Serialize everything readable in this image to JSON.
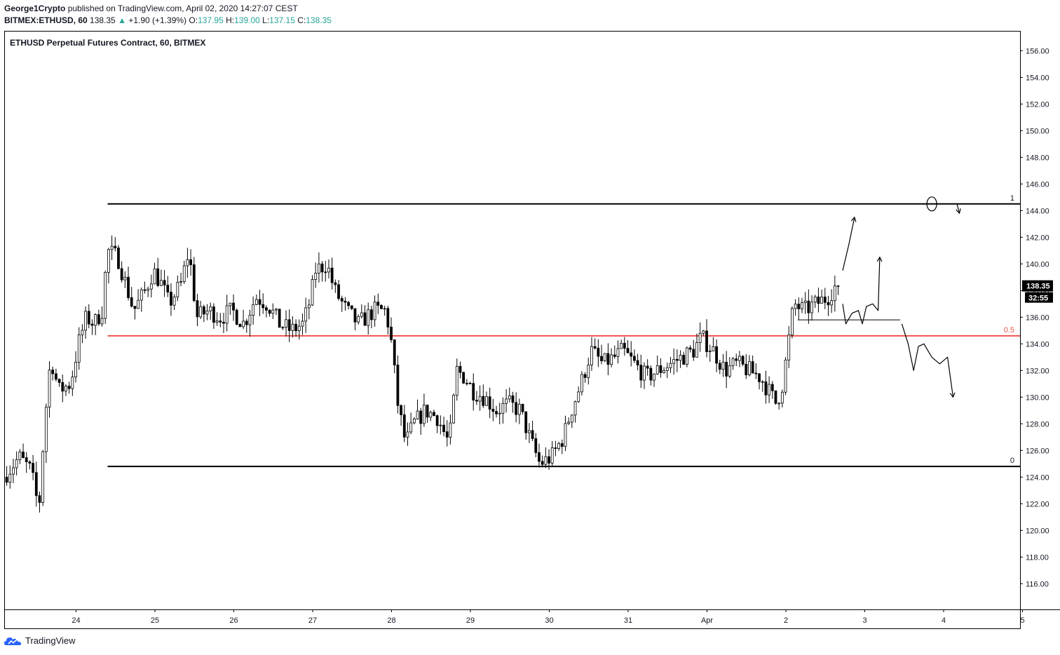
{
  "header": {
    "author": "George1Crypto",
    "published_text": "published on TradingView.com, April 02, 2020 14:27:07 CEST",
    "symbol_interval": "BITMEX:ETHUSD, 60",
    "last": "138.35",
    "arrow": "▲",
    "change": "+1.90 (+1.39%)",
    "o_label": "O:",
    "o_value": "137.95",
    "h_label": "H:",
    "h_value": "139.00",
    "l_label": "L:",
    "l_value": "137.15",
    "c_label": "C:",
    "c_value": "138.35"
  },
  "footer": {
    "brand": "TradingView"
  },
  "colors": {
    "up": "#26a69a",
    "candle": "#000000",
    "mid_line": "#ef5350",
    "label_bg": "#000000"
  },
  "chart_data": {
    "type": "candlestick",
    "title": "ETHUSD Perpetual Futures Contract, 60, BITMEX",
    "ylim": [
      114,
      157
    ],
    "y_ticks": [
      "156.00",
      "154.00",
      "152.00",
      "150.00",
      "148.00",
      "146.00",
      "144.00",
      "142.00",
      "140.00",
      "138.00",
      "136.00",
      "134.00",
      "132.00",
      "130.00",
      "128.00",
      "126.00",
      "124.00",
      "122.00",
      "120.00",
      "118.00",
      "116.00"
    ],
    "xlim_days": [
      23.1,
      36.0
    ],
    "x_ticks": [
      {
        "label": "24",
        "day": 24
      },
      {
        "label": "25",
        "day": 25
      },
      {
        "label": "26",
        "day": 26
      },
      {
        "label": "27",
        "day": 27
      },
      {
        "label": "28",
        "day": 28
      },
      {
        "label": "29",
        "day": 29
      },
      {
        "label": "30",
        "day": 30
      },
      {
        "label": "31",
        "day": 31
      },
      {
        "label": "Apr",
        "day": 32
      },
      {
        "label": "2",
        "day": 33
      },
      {
        "label": "3",
        "day": 34
      },
      {
        "label": "4",
        "day": 35
      },
      {
        "label": "5",
        "day": 36
      }
    ],
    "grid": false,
    "fib_levels": [
      {
        "label": "1",
        "price": 144.5,
        "start_day": 24.4,
        "color": "#000000"
      },
      {
        "label": "0.5",
        "price": 134.6,
        "start_day": 24.4,
        "color": "#ef5350"
      },
      {
        "label": "0",
        "price": 124.8,
        "start_day": 24.4,
        "color": "#000000"
      }
    ],
    "price_label": "138.35",
    "countdown_label": "32:55",
    "path": [
      [
        23.1,
        124.0
      ],
      [
        23.3,
        125.5
      ],
      [
        23.45,
        124.5
      ],
      [
        23.55,
        121.5
      ],
      [
        23.62,
        128.0
      ],
      [
        23.7,
        133.0
      ],
      [
        23.8,
        130.5
      ],
      [
        23.95,
        131.0
      ],
      [
        24.05,
        134.0
      ],
      [
        24.15,
        136.0
      ],
      [
        24.25,
        135.5
      ],
      [
        24.35,
        136.5
      ],
      [
        24.42,
        141.0
      ],
      [
        24.55,
        140.5
      ],
      [
        24.65,
        138.5
      ],
      [
        24.75,
        136.5
      ],
      [
        24.9,
        138.0
      ],
      [
        25.0,
        139.5
      ],
      [
        25.1,
        138.5
      ],
      [
        25.2,
        137.0
      ],
      [
        25.35,
        138.5
      ],
      [
        25.45,
        141.0
      ],
      [
        25.55,
        136.0
      ],
      [
        25.7,
        136.5
      ],
      [
        25.85,
        136.0
      ],
      [
        26.0,
        136.5
      ],
      [
        26.15,
        135.5
      ],
      [
        26.3,
        137.5
      ],
      [
        26.45,
        137.0
      ],
      [
        26.6,
        135.5
      ],
      [
        26.75,
        135.0
      ],
      [
        26.9,
        135.5
      ],
      [
        27.0,
        137.5
      ],
      [
        27.05,
        139.5
      ],
      [
        27.2,
        140.0
      ],
      [
        27.3,
        138.0
      ],
      [
        27.45,
        136.5
      ],
      [
        27.6,
        135.5
      ],
      [
        27.8,
        136.5
      ],
      [
        27.95,
        136.5
      ],
      [
        28.02,
        134.0
      ],
      [
        28.1,
        129.5
      ],
      [
        28.2,
        126.5
      ],
      [
        28.3,
        128.0
      ],
      [
        28.45,
        129.0
      ],
      [
        28.6,
        128.5
      ],
      [
        28.75,
        126.5
      ],
      [
        28.85,
        132.0
      ],
      [
        28.95,
        131.5
      ],
      [
        29.05,
        130.5
      ],
      [
        29.2,
        130.0
      ],
      [
        29.35,
        129.0
      ],
      [
        29.5,
        129.5
      ],
      [
        29.65,
        129.0
      ],
      [
        29.8,
        126.5
      ],
      [
        29.9,
        125.0
      ],
      [
        30.05,
        125.5
      ],
      [
        30.2,
        127.0
      ],
      [
        30.3,
        129.0
      ],
      [
        30.45,
        131.5
      ],
      [
        30.55,
        133.5
      ],
      [
        30.7,
        132.5
      ],
      [
        30.85,
        133.0
      ],
      [
        30.95,
        133.5
      ],
      [
        31.1,
        132.5
      ],
      [
        31.25,
        131.5
      ],
      [
        31.4,
        132.0
      ],
      [
        31.55,
        132.5
      ],
      [
        31.7,
        133.0
      ],
      [
        31.85,
        133.5
      ],
      [
        31.95,
        134.5
      ],
      [
        32.1,
        133.5
      ],
      [
        32.25,
        132.0
      ],
      [
        32.4,
        132.5
      ],
      [
        32.55,
        132.0
      ],
      [
        32.7,
        131.5
      ],
      [
        32.8,
        130.5
      ],
      [
        32.9,
        129.5
      ],
      [
        32.98,
        131.0
      ],
      [
        33.05,
        134.0
      ],
      [
        33.12,
        137.0
      ],
      [
        33.25,
        136.5
      ],
      [
        33.4,
        137.0
      ],
      [
        33.55,
        137.5
      ],
      [
        33.65,
        138.35
      ]
    ]
  },
  "drawings": {
    "trendline": {
      "from": {
        "day": 33.15,
        "price": 135.8
      },
      "to": {
        "day": 34.45,
        "price": 135.8
      }
    },
    "paths": [
      [
        [
          33.72,
          139.5
        ],
        [
          33.8,
          141.5
        ],
        [
          33.87,
          143.5
        ]
      ],
      [
        [
          33.72,
          137.0
        ],
        [
          33.76,
          135.5
        ],
        [
          33.84,
          136.3
        ],
        [
          33.92,
          136.5
        ],
        [
          33.97,
          135.5
        ],
        [
          34.02,
          136.8
        ],
        [
          34.1,
          137.0
        ],
        [
          34.17,
          136.5
        ],
        [
          34.19,
          140.5
        ]
      ],
      [
        [
          34.47,
          135.5
        ],
        [
          34.55,
          134.0
        ],
        [
          34.62,
          132.0
        ],
        [
          34.68,
          133.8
        ],
        [
          34.75,
          134.0
        ],
        [
          34.85,
          133.0
        ],
        [
          34.95,
          132.5
        ],
        [
          35.05,
          133.0
        ],
        [
          35.12,
          130.0
        ]
      ],
      [
        [
          35.17,
          144.5
        ],
        [
          35.2,
          143.8
        ]
      ]
    ],
    "circle": {
      "day": 34.85,
      "price": 144.5
    }
  }
}
